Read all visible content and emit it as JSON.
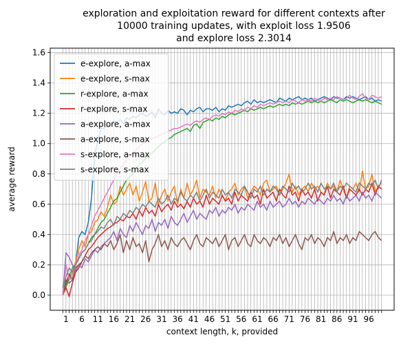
{
  "chart_data": {
    "type": "line",
    "title_lines": [
      "exploration and exploitation reward for different contexts after",
      "10000 training updates, with exploit loss 1.9506",
      "and explore loss 2.3014"
    ],
    "xlabel": "context length, k, provided",
    "ylabel": "average reward",
    "xlim": [
      -3.95,
      103.95
    ],
    "ylim": [
      -0.1,
      1.63
    ],
    "xticks": [
      1,
      6,
      11,
      16,
      21,
      26,
      31,
      36,
      41,
      46,
      51,
      56,
      61,
      66,
      71,
      76,
      81,
      86,
      91,
      96
    ],
    "yticks": [
      0.0,
      0.2,
      0.4,
      0.6,
      0.8,
      1.0,
      1.2,
      1.4,
      1.6
    ],
    "ytick_labels": [
      "0.0",
      "0.2",
      "0.4",
      "0.6",
      "0.8",
      "1.0",
      "1.2",
      "1.4",
      "1.6"
    ],
    "grid": true,
    "legend_position": "top-left",
    "x_start": 0,
    "series": [
      {
        "name": "e-explore, a-max",
        "color": "#1f77b4",
        "values": [
          0.0,
          0.1,
          0.08,
          0.1,
          0.2,
          0.38,
          0.42,
          0.4,
          0.48,
          0.64,
          0.92,
          1.02,
          1.1,
          1.1,
          1.12,
          1.12,
          1.15,
          1.14,
          1.16,
          1.13,
          1.17,
          1.16,
          1.18,
          1.17,
          1.19,
          1.2,
          1.18,
          1.19,
          1.21,
          1.17,
          1.23,
          1.2,
          1.19,
          1.22,
          1.2,
          1.21,
          1.2,
          1.23,
          1.22,
          1.19,
          1.22,
          1.21,
          1.23,
          1.24,
          1.21,
          1.23,
          1.23,
          1.22,
          1.24,
          1.21,
          1.23,
          1.22,
          1.25,
          1.24,
          1.25,
          1.26,
          1.25,
          1.27,
          1.28,
          1.26,
          1.29,
          1.27,
          1.28,
          1.27,
          1.28,
          1.29,
          1.28,
          1.27,
          1.3,
          1.29,
          1.28,
          1.3,
          1.29,
          1.3,
          1.31,
          1.29,
          1.3,
          1.29,
          1.3,
          1.28,
          1.29,
          1.3,
          1.31,
          1.3,
          1.29,
          1.31,
          1.3,
          1.3,
          1.29,
          1.31,
          1.3,
          1.31,
          1.3,
          1.29,
          1.3,
          1.31,
          1.29,
          1.3,
          1.28,
          1.29,
          1.28
        ]
      },
      {
        "name": "e-explore, s-max",
        "color": "#ff7f0e",
        "values": [
          0.02,
          0.05,
          0.1,
          0.15,
          0.22,
          0.3,
          0.36,
          0.32,
          0.4,
          0.42,
          0.48,
          0.5,
          0.55,
          0.52,
          0.58,
          0.66,
          0.6,
          0.62,
          0.72,
          0.66,
          0.7,
          0.74,
          0.66,
          0.72,
          0.62,
          0.68,
          0.75,
          0.62,
          0.64,
          0.74,
          0.6,
          0.66,
          0.7,
          0.62,
          0.68,
          0.72,
          0.6,
          0.7,
          0.64,
          0.74,
          0.66,
          0.7,
          0.76,
          0.64,
          0.7,
          0.68,
          0.66,
          0.72,
          0.64,
          0.7,
          0.66,
          0.62,
          0.68,
          0.7,
          0.74,
          0.66,
          0.7,
          0.72,
          0.64,
          0.68,
          0.72,
          0.7,
          0.66,
          0.74,
          0.76,
          0.68,
          0.7,
          0.72,
          0.66,
          0.7,
          0.74,
          0.8,
          0.68,
          0.72,
          0.66,
          0.7,
          0.72,
          0.68,
          0.74,
          0.7,
          0.72,
          0.68,
          0.66,
          0.74,
          0.7,
          0.72,
          0.68,
          0.76,
          0.7,
          0.64,
          0.72,
          0.7,
          0.74,
          0.68,
          0.82,
          0.7,
          0.72,
          0.8,
          0.68,
          0.72,
          0.74
        ]
      },
      {
        "name": "r-explore, a-max",
        "color": "#2ca02c",
        "values": [
          0.0,
          0.06,
          0.12,
          0.18,
          0.2,
          0.24,
          0.28,
          0.3,
          0.34,
          0.38,
          0.4,
          0.44,
          0.48,
          0.5,
          0.54,
          0.58,
          0.62,
          0.64,
          0.68,
          0.72,
          0.76,
          0.78,
          0.8,
          0.84,
          0.86,
          0.88,
          0.9,
          0.92,
          0.94,
          0.96,
          0.98,
          1.0,
          1.01,
          1.03,
          1.04,
          1.06,
          1.07,
          1.08,
          1.09,
          1.1,
          1.08,
          1.12,
          1.13,
          1.1,
          1.14,
          1.15,
          1.16,
          1.15,
          1.17,
          1.16,
          1.18,
          1.17,
          1.19,
          1.2,
          1.19,
          1.2,
          1.21,
          1.22,
          1.21,
          1.23,
          1.22,
          1.23,
          1.24,
          1.23,
          1.24,
          1.25,
          1.24,
          1.25,
          1.26,
          1.25,
          1.26,
          1.25,
          1.27,
          1.26,
          1.27,
          1.26,
          1.27,
          1.28,
          1.27,
          1.28,
          1.27,
          1.28,
          1.27,
          1.28,
          1.29,
          1.28,
          1.27,
          1.29,
          1.28,
          1.29,
          1.28,
          1.27,
          1.28,
          1.29,
          1.28,
          1.29,
          1.28,
          1.27,
          1.28,
          1.27,
          1.26
        ]
      },
      {
        "name": "r-explore, s-max",
        "color": "#d62728",
        "values": [
          0.0,
          0.05,
          -0.01,
          0.08,
          0.15,
          0.18,
          0.22,
          0.26,
          0.3,
          0.32,
          0.35,
          0.38,
          0.4,
          0.42,
          0.44,
          0.45,
          0.47,
          0.48,
          0.5,
          0.49,
          0.52,
          0.51,
          0.54,
          0.5,
          0.56,
          0.52,
          0.58,
          0.54,
          0.56,
          0.52,
          0.6,
          0.55,
          0.58,
          0.6,
          0.56,
          0.62,
          0.58,
          0.6,
          0.57,
          0.62,
          0.58,
          0.64,
          0.6,
          0.62,
          0.58,
          0.66,
          0.6,
          0.64,
          0.62,
          0.6,
          0.66,
          0.62,
          0.64,
          0.6,
          0.68,
          0.62,
          0.66,
          0.64,
          0.62,
          0.68,
          0.64,
          0.66,
          0.6,
          0.7,
          0.64,
          0.66,
          0.68,
          0.62,
          0.7,
          0.66,
          0.64,
          0.72,
          0.66,
          0.68,
          0.62,
          0.7,
          0.66,
          0.68,
          0.64,
          0.7,
          0.62,
          0.68,
          0.66,
          0.72,
          0.64,
          0.7,
          0.68,
          0.66,
          0.72,
          0.64,
          0.7,
          0.68,
          0.66,
          0.7,
          0.66,
          0.7,
          0.68,
          0.74,
          0.66,
          0.72,
          0.7
        ]
      },
      {
        "name": "a-explore, a-max",
        "color": "#9467bd",
        "values": [
          0.0,
          0.28,
          0.25,
          0.2,
          0.16,
          0.2,
          0.18,
          0.24,
          0.22,
          0.26,
          0.3,
          0.28,
          0.32,
          0.34,
          0.36,
          0.38,
          0.42,
          0.36,
          0.44,
          0.4,
          0.38,
          0.46,
          0.42,
          0.48,
          0.44,
          0.4,
          0.46,
          0.44,
          0.5,
          0.42,
          0.48,
          0.46,
          0.5,
          0.44,
          0.52,
          0.48,
          0.46,
          0.5,
          0.54,
          0.48,
          0.52,
          0.56,
          0.5,
          0.54,
          0.52,
          0.5,
          0.56,
          0.54,
          0.58,
          0.52,
          0.56,
          0.54,
          0.58,
          0.56,
          0.6,
          0.54,
          0.58,
          0.56,
          0.6,
          0.58,
          0.56,
          0.62,
          0.58,
          0.6,
          0.56,
          0.62,
          0.58,
          0.6,
          0.62,
          0.58,
          0.6,
          0.64,
          0.6,
          0.62,
          0.58,
          0.62,
          0.6,
          0.64,
          0.62,
          0.6,
          0.64,
          0.62,
          0.6,
          0.64,
          0.62,
          0.66,
          0.62,
          0.64,
          0.6,
          0.66,
          0.62,
          0.64,
          0.66,
          0.62,
          0.68,
          0.64,
          0.66,
          0.62,
          0.68,
          0.66,
          0.64
        ]
      },
      {
        "name": "a-explore, s-max",
        "color": "#8c564b",
        "values": [
          0.02,
          0.08,
          0.14,
          0.1,
          0.18,
          0.2,
          0.22,
          0.26,
          0.24,
          0.28,
          0.3,
          0.32,
          0.3,
          0.34,
          0.32,
          0.36,
          0.3,
          0.34,
          0.4,
          0.28,
          0.36,
          0.3,
          0.38,
          0.32,
          0.34,
          0.28,
          0.36,
          0.22,
          0.3,
          0.34,
          0.4,
          0.32,
          0.36,
          0.3,
          0.38,
          0.34,
          0.32,
          0.36,
          0.38,
          0.34,
          0.3,
          0.36,
          0.4,
          0.34,
          0.32,
          0.38,
          0.36,
          0.34,
          0.38,
          0.32,
          0.36,
          0.4,
          0.3,
          0.36,
          0.38,
          0.32,
          0.36,
          0.4,
          0.34,
          0.32,
          0.4,
          0.36,
          0.34,
          0.38,
          0.36,
          0.32,
          0.38,
          0.36,
          0.4,
          0.34,
          0.38,
          0.32,
          0.36,
          0.4,
          0.34,
          0.3,
          0.38,
          0.36,
          0.4,
          0.34,
          0.38,
          0.36,
          0.32,
          0.38,
          0.36,
          0.42,
          0.34,
          0.38,
          0.36,
          0.4,
          0.34,
          0.38,
          0.36,
          0.42,
          0.4,
          0.38,
          0.36,
          0.4,
          0.42,
          0.38,
          0.36
        ]
      },
      {
        "name": "s-explore, a-max",
        "color": "#e377c2",
        "values": [
          0.0,
          0.2,
          0.1,
          0.12,
          0.2,
          0.26,
          0.3,
          0.36,
          0.4,
          0.46,
          0.52,
          0.56,
          0.6,
          0.64,
          0.68,
          0.72,
          0.76,
          0.8,
          0.84,
          0.86,
          0.9,
          0.92,
          0.94,
          0.96,
          0.98,
          1.0,
          1.01,
          1.02,
          1.03,
          1.04,
          1.05,
          1.06,
          1.07,
          1.08,
          1.09,
          1.1,
          1.1,
          1.11,
          1.12,
          1.13,
          1.12,
          1.14,
          1.15,
          1.14,
          1.16,
          1.17,
          1.16,
          1.18,
          1.19,
          1.18,
          1.2,
          1.19,
          1.21,
          1.2,
          1.22,
          1.21,
          1.23,
          1.22,
          1.24,
          1.23,
          1.25,
          1.24,
          1.26,
          1.25,
          1.26,
          1.27,
          1.26,
          1.27,
          1.28,
          1.27,
          1.28,
          1.27,
          1.29,
          1.28,
          1.27,
          1.29,
          1.28,
          1.29,
          1.28,
          1.3,
          1.29,
          1.28,
          1.3,
          1.29,
          1.3,
          1.29,
          1.31,
          1.3,
          1.29,
          1.3,
          1.32,
          1.3,
          1.29,
          1.31,
          1.33,
          1.3,
          1.29,
          1.32,
          1.31,
          1.3,
          1.31
        ]
      },
      {
        "name": "s-explore, s-max",
        "color": "#7f7f7f",
        "values": [
          0.05,
          0.12,
          0.18,
          0.15,
          0.2,
          0.24,
          0.28,
          0.3,
          0.34,
          0.36,
          0.4,
          0.42,
          0.45,
          0.44,
          0.48,
          0.5,
          0.46,
          0.52,
          0.5,
          0.54,
          0.52,
          0.56,
          0.54,
          0.58,
          0.56,
          0.6,
          0.58,
          0.62,
          0.6,
          0.58,
          0.64,
          0.6,
          0.62,
          0.66,
          0.6,
          0.64,
          0.62,
          0.68,
          0.64,
          0.62,
          0.66,
          0.64,
          0.68,
          0.62,
          0.66,
          0.7,
          0.64,
          0.68,
          0.66,
          0.64,
          0.7,
          0.66,
          0.68,
          0.64,
          0.7,
          0.68,
          0.66,
          0.72,
          0.68,
          0.64,
          0.7,
          0.68,
          0.72,
          0.66,
          0.7,
          0.68,
          0.72,
          0.7,
          0.66,
          0.72,
          0.7,
          0.68,
          0.74,
          0.7,
          0.72,
          0.68,
          0.7,
          0.74,
          0.7,
          0.72,
          0.68,
          0.74,
          0.7,
          0.72,
          0.7,
          0.74,
          0.68,
          0.72,
          0.7,
          0.74,
          0.72,
          0.7,
          0.68,
          0.74,
          0.72,
          0.7,
          0.74,
          0.72,
          0.76,
          0.7,
          0.76
        ]
      }
    ]
  }
}
